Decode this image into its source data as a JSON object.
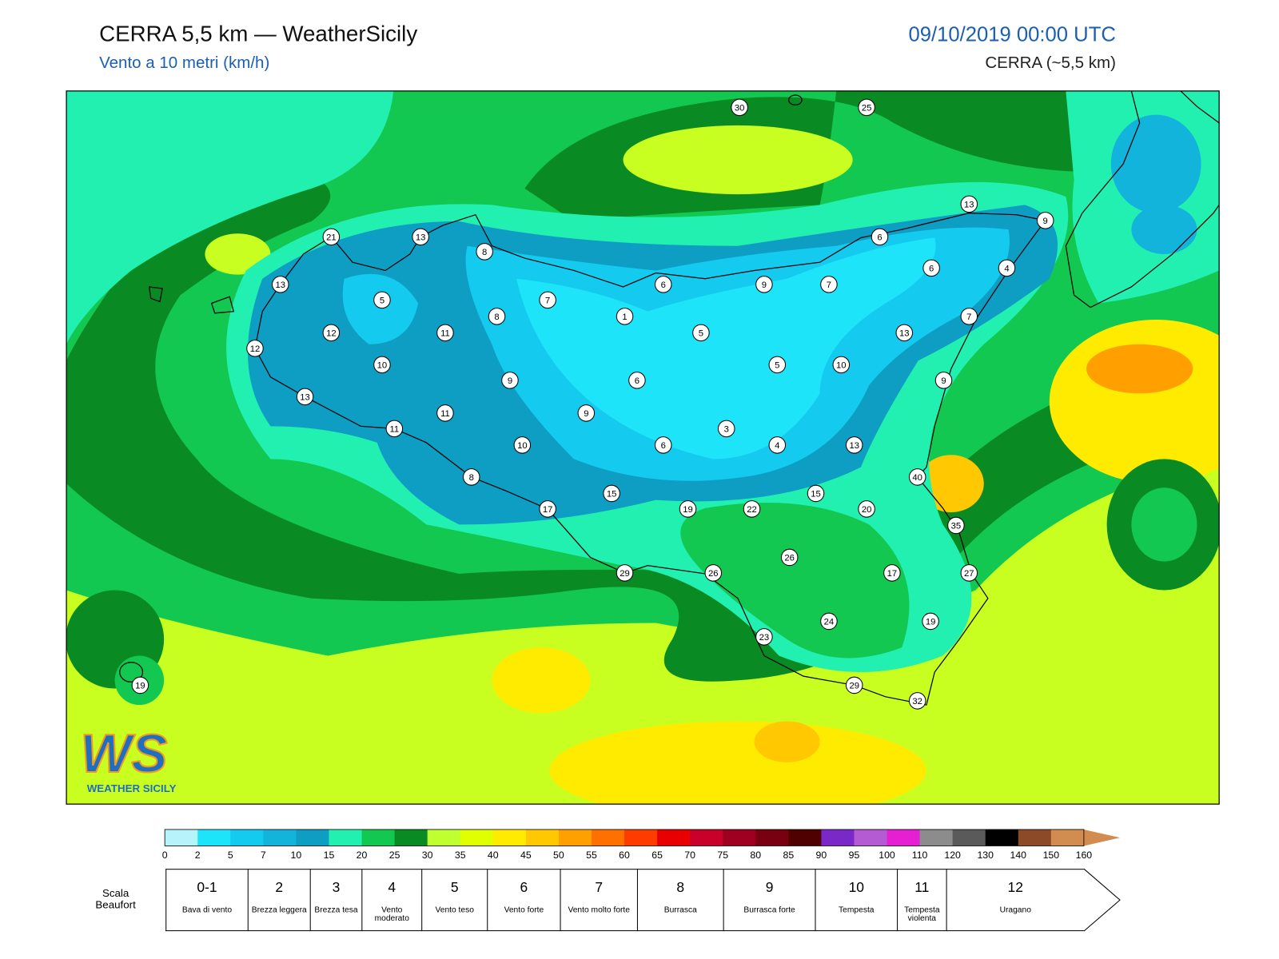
{
  "header": {
    "title": "CERRA 5,5 km — WeatherSicily",
    "subtitle": "Vento a 10 metri (km/h)",
    "datetime": "09/10/2019 00:00 UTC",
    "model": "CERRA (~5,5 km)"
  },
  "map": {
    "stations": [
      30,
      25,
      13,
      9,
      21,
      13,
      6,
      8,
      6,
      4,
      13,
      6,
      9,
      7,
      5,
      7,
      1,
      8,
      7,
      12,
      11,
      5,
      13,
      12,
      10,
      5,
      10,
      9,
      6,
      9,
      13,
      11,
      9,
      11,
      3,
      10,
      6,
      4,
      13,
      40,
      8,
      15,
      15,
      17,
      19,
      22,
      20,
      35,
      26,
      29,
      26,
      17,
      27,
      24,
      19,
      23,
      19,
      29,
      32
    ]
  },
  "logo": {
    "mark": "WS",
    "name": "WEATHER SICILY"
  },
  "colorbar": {
    "ticks": [
      0,
      2,
      5,
      7,
      10,
      15,
      20,
      25,
      30,
      35,
      40,
      45,
      50,
      55,
      60,
      65,
      70,
      75,
      80,
      85,
      90,
      95,
      100,
      110,
      120,
      130,
      140,
      150,
      160
    ],
    "colors": [
      "#b4f4fa",
      "#1ee4fa",
      "#14cbef",
      "#12b4dc",
      "#0e9ec4",
      "#22f0b0",
      "#12c850",
      "#0a8a22",
      "#c0ff30",
      "#e0ff00",
      "#ffeb00",
      "#ffc800",
      "#ffa000",
      "#ff7000",
      "#ff3c00",
      "#e80000",
      "#c8002a",
      "#a00020",
      "#780010",
      "#500000",
      "#7a28c8",
      "#b45ad2",
      "#e620d2",
      "#8c8c8c",
      "#5a5a5a",
      "#000000",
      "#8c4a28",
      "#d28c50"
    ]
  },
  "beaufort": {
    "label": "Scala Beaufort",
    "levels": [
      {
        "force": "0-1",
        "name": "Bava di vento"
      },
      {
        "force": 2,
        "name": "Brezza leggera"
      },
      {
        "force": 3,
        "name": "Brezza tesa"
      },
      {
        "force": 4,
        "name": "Vento moderato"
      },
      {
        "force": 5,
        "name": "Vento teso"
      },
      {
        "force": 6,
        "name": "Vento forte"
      },
      {
        "force": 7,
        "name": "Vento molto forte"
      },
      {
        "force": 8,
        "name": "Burrasca"
      },
      {
        "force": 9,
        "name": "Burrasca forte"
      },
      {
        "force": 10,
        "name": "Tempesta"
      },
      {
        "force": 11,
        "name": "Tempesta violenta"
      },
      {
        "force": 12,
        "name": "Uragano"
      }
    ]
  }
}
